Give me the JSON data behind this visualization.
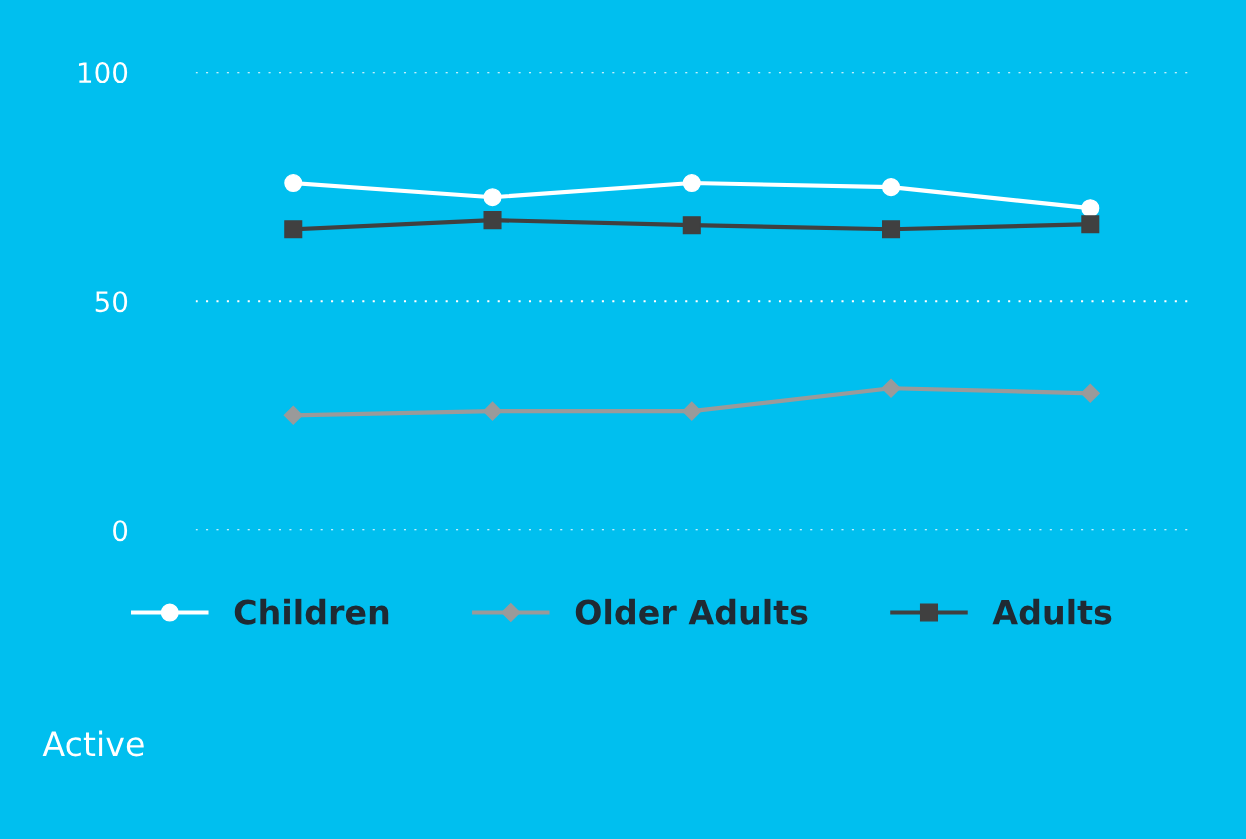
{
  "chart_data": {
    "type": "line",
    "categories": [
      null,
      null,
      null,
      null,
      null
    ],
    "series": [
      {
        "name": "Children",
        "color": "#ffffff",
        "marker": "circle",
        "values": [
          75.8,
          72.7,
          75.8,
          74.9,
          70.3
        ]
      },
      {
        "name": "Older Adults",
        "color": "#9a9a9a",
        "marker": "diamond",
        "values": [
          25.1,
          26.0,
          26.0,
          31.0,
          29.9
        ]
      },
      {
        "name": "Adults",
        "color": "#404040",
        "marker": "square",
        "values": [
          65.7,
          67.7,
          66.6,
          65.7,
          66.8
        ]
      }
    ],
    "ylim": [
      0,
      100
    ],
    "yticks": [
      0,
      50,
      100
    ],
    "grid": "y",
    "legend": "bottom",
    "tick_labels": "y",
    "line_style": "solid",
    "annotations": [
      "Active"
    ]
  }
}
